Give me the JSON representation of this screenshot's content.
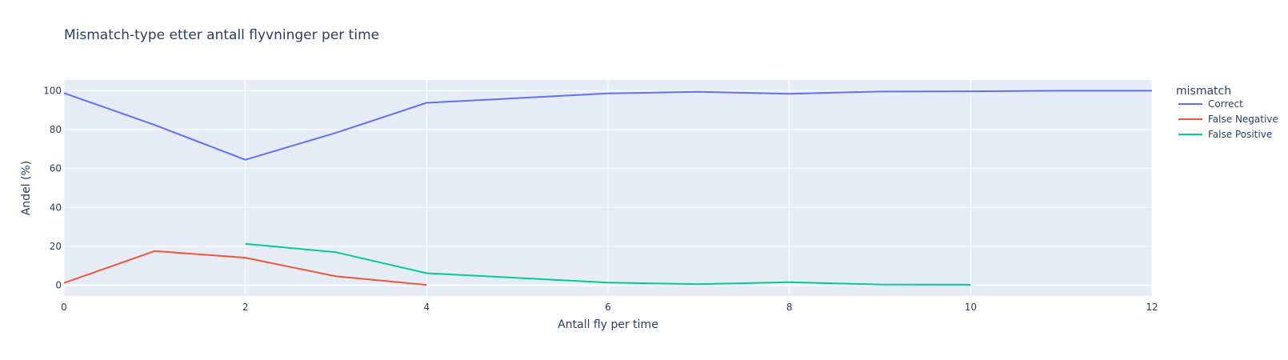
{
  "chart_data": {
    "type": "line",
    "title": "Mismatch-type etter antall flyvninger per time",
    "xlabel": "Antall fly per time",
    "ylabel": "Andel (%)",
    "xlim": [
      0,
      12
    ],
    "ylim": [
      -5.5,
      105.5
    ],
    "xticks": [
      0,
      2,
      4,
      6,
      8,
      10,
      12
    ],
    "yticks": [
      0,
      20,
      40,
      60,
      80,
      100
    ],
    "grid": true,
    "plot_bgcolor": "#e5ecf6",
    "legend": {
      "title": "mismatch",
      "placement": "top-right-outside"
    },
    "series": [
      {
        "name": "Correct",
        "color": "#636efa",
        "x": [
          0,
          1,
          2,
          3,
          4,
          6,
          7,
          8,
          9,
          10,
          11,
          12
        ],
        "values": [
          98.8,
          82.4,
          64.5,
          78.4,
          93.8,
          98.6,
          99.4,
          98.4,
          99.6,
          99.7,
          100,
          100
        ]
      },
      {
        "name": "False Negative",
        "color": "#ef553b",
        "x": [
          0,
          1,
          2,
          3,
          4
        ],
        "values": [
          1.2,
          17.6,
          14.2,
          4.6,
          0.2
        ]
      },
      {
        "name": "False Positive",
        "color": "#00cc96",
        "x": [
          2,
          3,
          4,
          6,
          7,
          8,
          9,
          10
        ],
        "values": [
          21.3,
          17.0,
          6.2,
          1.4,
          0.6,
          1.6,
          0.4,
          0.3
        ]
      }
    ]
  }
}
